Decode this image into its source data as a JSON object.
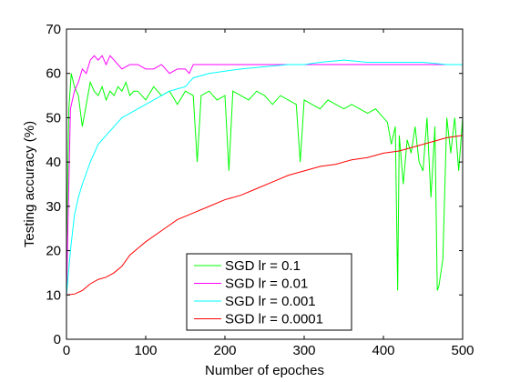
{
  "chart_data": {
    "type": "line",
    "xlabel": "Number of epoches",
    "ylabel": "Testing accuracy (%)",
    "xlim": [
      0,
      500
    ],
    "ylim": [
      0,
      70
    ],
    "xticks": [
      0,
      100,
      200,
      300,
      400,
      500
    ],
    "yticks": [
      0,
      10,
      20,
      30,
      40,
      50,
      60,
      70
    ],
    "grid": false,
    "legend_position": "bottom-center",
    "series": [
      {
        "name": "SGD lr = 0.1",
        "color": "#00ff00",
        "x": [
          0,
          3,
          6,
          10,
          15,
          20,
          25,
          30,
          35,
          40,
          45,
          50,
          55,
          60,
          65,
          70,
          75,
          80,
          85,
          90,
          95,
          100,
          110,
          120,
          130,
          140,
          150,
          160,
          165,
          170,
          180,
          190,
          200,
          205,
          210,
          220,
          230,
          240,
          250,
          260,
          270,
          280,
          290,
          295,
          300,
          310,
          320,
          330,
          340,
          350,
          360,
          370,
          380,
          390,
          400,
          405,
          410,
          415,
          418,
          420,
          425,
          430,
          435,
          440,
          445,
          450,
          455,
          460,
          465,
          468,
          470,
          475,
          480,
          485,
          490,
          495,
          500
        ],
        "values": [
          20,
          52,
          60,
          57,
          55,
          48,
          53,
          58,
          56,
          55,
          57,
          54,
          56,
          55,
          57,
          56,
          58,
          55,
          56,
          56,
          55,
          54,
          57,
          55,
          56,
          53,
          56,
          55,
          40,
          55,
          56,
          54,
          55,
          38,
          56,
          55,
          54,
          56,
          55,
          53,
          55,
          54,
          53,
          40,
          54,
          53,
          52,
          54,
          53,
          52,
          53,
          52,
          51,
          52,
          50,
          49,
          44,
          48,
          11,
          46,
          35,
          45,
          42,
          48,
          40,
          38,
          50,
          32,
          48,
          11,
          12,
          18,
          50,
          42,
          50,
          38,
          50
        ]
      },
      {
        "name": "SGD lr = 0.01",
        "color": "#ff00ff",
        "x": [
          0,
          5,
          10,
          15,
          20,
          25,
          30,
          35,
          40,
          45,
          50,
          55,
          60,
          70,
          80,
          90,
          100,
          110,
          120,
          130,
          140,
          150,
          155,
          160,
          170,
          200,
          250,
          300,
          350,
          400,
          450,
          500
        ],
        "values": [
          10,
          52,
          56,
          58,
          61,
          60,
          63,
          64,
          63,
          64,
          62,
          64,
          63,
          61,
          62,
          62,
          61,
          61,
          62,
          60,
          61,
          61,
          60,
          62,
          62,
          62,
          62,
          62,
          62,
          62,
          62,
          62
        ]
      },
      {
        "name": "SGD lr = 0.001",
        "color": "#00ffff",
        "x": [
          0,
          5,
          10,
          15,
          20,
          30,
          40,
          50,
          60,
          70,
          80,
          90,
          100,
          110,
          120,
          130,
          140,
          150,
          160,
          180,
          200,
          220,
          250,
          280,
          300,
          320,
          350,
          380,
          400,
          420,
          450,
          480,
          500
        ],
        "values": [
          10,
          20,
          28,
          32,
          35,
          40,
          44,
          46,
          48,
          50,
          51,
          52,
          53,
          54,
          55,
          56,
          56.5,
          57,
          59,
          60,
          60.5,
          61,
          61.5,
          62,
          62,
          62.5,
          63,
          62.5,
          62.5,
          62.5,
          62.5,
          62,
          62
        ]
      },
      {
        "name": "SGD lr = 0.0001",
        "color": "#ff0000",
        "x": [
          0,
          10,
          20,
          30,
          40,
          50,
          60,
          70,
          80,
          90,
          100,
          120,
          140,
          160,
          180,
          200,
          220,
          240,
          260,
          280,
          300,
          320,
          340,
          360,
          380,
          400,
          420,
          440,
          460,
          480,
          500
        ],
        "values": [
          10,
          10.2,
          11,
          12.5,
          13.5,
          14,
          15,
          16.5,
          19,
          20.5,
          22,
          24.5,
          27,
          28.5,
          30,
          31.5,
          32.5,
          34,
          35.5,
          37,
          38,
          39,
          39.5,
          40.5,
          41,
          42,
          42.5,
          43.5,
          44.5,
          45.5,
          46
        ]
      }
    ]
  }
}
